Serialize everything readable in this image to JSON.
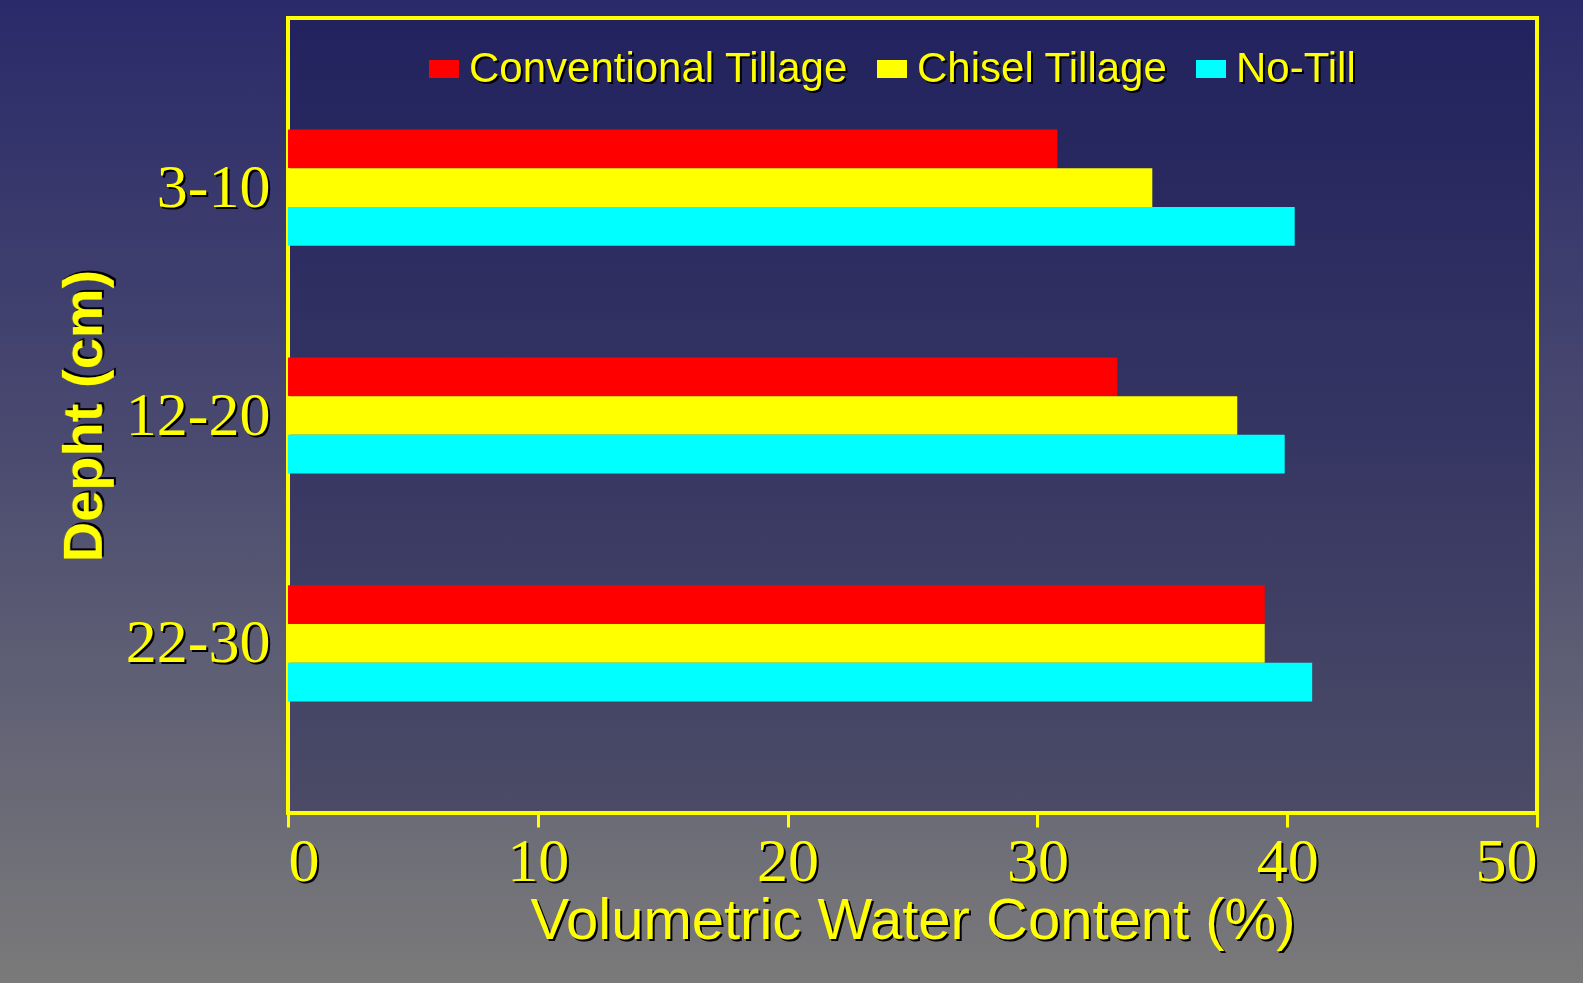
{
  "chart_data": {
    "type": "bar",
    "orientation": "horizontal",
    "xlabel": "Volumetric Water Content (%)",
    "ylabel": "Depht (cm)",
    "categories": [
      "3-10",
      "12-20",
      "22-30"
    ],
    "series": [
      {
        "name": "Conventional Tillage",
        "color": "#ff0000",
        "values": [
          30.8,
          33.2,
          39.1
        ]
      },
      {
        "name": "Chisel Tillage",
        "color": "#ffff00",
        "values": [
          34.6,
          38.0,
          39.1
        ]
      },
      {
        "name": "No-Till",
        "color": "#00ffff",
        "values": [
          40.3,
          39.9,
          41.0
        ]
      }
    ],
    "xlim": [
      0,
      50
    ],
    "xticks": [
      0,
      10,
      20,
      30,
      40,
      50
    ],
    "grid": false,
    "legend": "top"
  }
}
